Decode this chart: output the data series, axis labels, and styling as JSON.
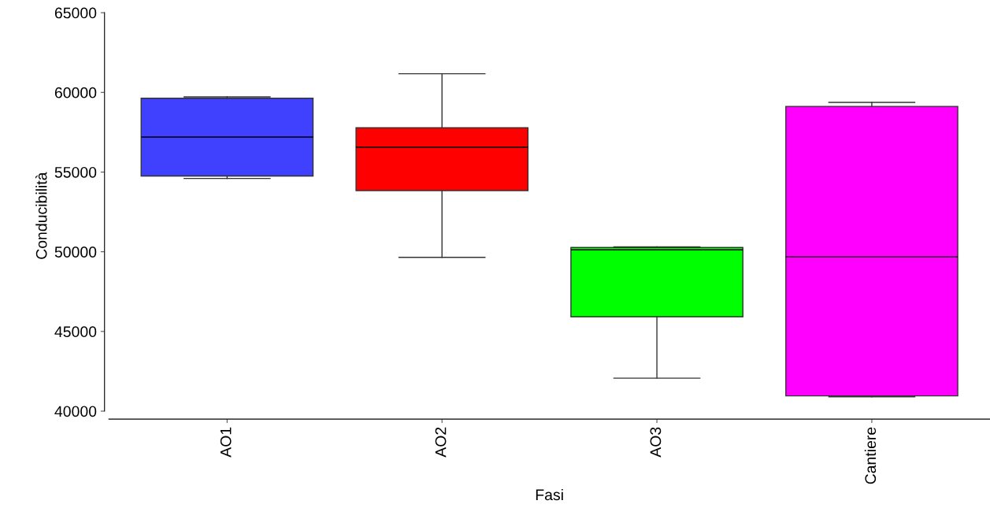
{
  "chart_data": {
    "type": "box",
    "xlabel": "Fasi",
    "ylabel": "Conducibilità",
    "categories": [
      "AO1",
      "AO2",
      "AO3",
      "Cantiere"
    ],
    "colors": [
      "#4040ff",
      "#ff0000",
      "#00ff00",
      "#ff00ff"
    ],
    "boxes": [
      {
        "low": 54600,
        "q1": 54750,
        "median": 57200,
        "q3": 59630,
        "high": 59720
      },
      {
        "low": 49650,
        "q1": 53840,
        "median": 56570,
        "q3": 57780,
        "high": 61170
      },
      {
        "low": 42070,
        "q1": 45920,
        "median": 50120,
        "q3": 50270,
        "high": 50310
      },
      {
        "low": 40900,
        "q1": 40960,
        "median": 49680,
        "q3": 59120,
        "high": 59370
      }
    ],
    "ylim": [
      39500,
      65000
    ],
    "yticks": [
      40000,
      45000,
      50000,
      55000,
      60000,
      65000
    ],
    "grid": false
  }
}
